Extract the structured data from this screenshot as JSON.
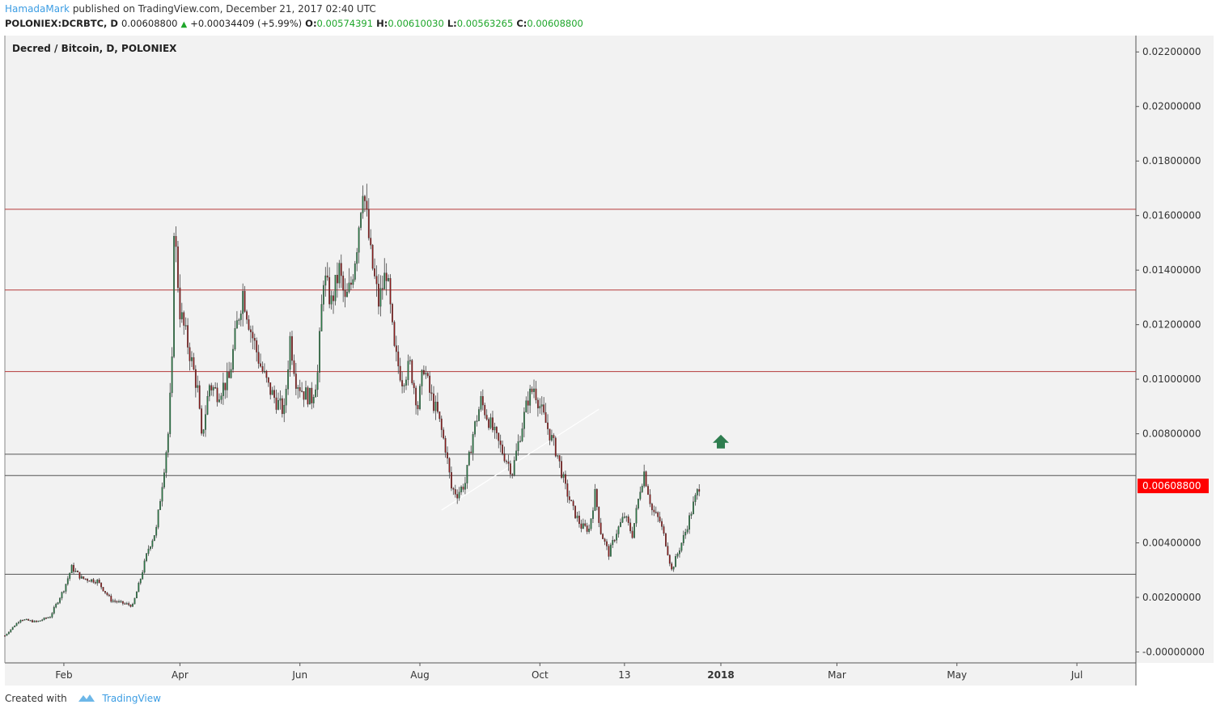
{
  "header": {
    "author": "HamadaMark",
    "published_text": "published on TradingView.com, December 21, 2017 02:40 UTC",
    "symbol": "POLONIEX:DCRBTC, D",
    "last": "0.00608800",
    "change": "+0.00034409 (+5.99%)",
    "o_label": "O:",
    "o_value": "0.00574391",
    "h_label": "H:",
    "h_value": "0.00610030",
    "l_label": "L:",
    "l_value": "0.00563265",
    "c_label": "C:",
    "c_value": "0.00608800"
  },
  "footer": {
    "created_with": "Created with",
    "brand": "TradingView"
  },
  "colors": {
    "pane_bg": "#f2f2f2",
    "up_candle": "#2a7a46",
    "down_candle": "#8c1b1b",
    "resistance": "#b53a3a",
    "support": "#555555",
    "last_price_bg": "#ff0000",
    "arrow": "#2e7d4f"
  },
  "chart_data": {
    "type": "candlestick",
    "title": "Decred / Bitcoin, D, POLONIEX",
    "last_price_label": "0.00608800",
    "ylim": [
      -0.0004,
      0.0226
    ],
    "y_ticks": [
      "0.02200000",
      "0.02000000",
      "0.01800000",
      "0.01600000",
      "0.01400000",
      "0.01200000",
      "0.01000000",
      "0.00800000",
      "0.00400000",
      "0.00200000",
      "-0.00000000"
    ],
    "y_tick_values": [
      0.022,
      0.02,
      0.018,
      0.016,
      0.014,
      0.012,
      0.01,
      0.008,
      0.004,
      0.002,
      0.0
    ],
    "x_ticks": [
      {
        "label": "Feb",
        "date": "2017-02-01",
        "bold": false
      },
      {
        "label": "Apr",
        "date": "2017-04-01",
        "bold": false
      },
      {
        "label": "Jun",
        "date": "2017-06-01",
        "bold": false
      },
      {
        "label": "Aug",
        "date": "2017-08-01",
        "bold": false
      },
      {
        "label": "Oct",
        "date": "2017-10-01",
        "bold": false
      },
      {
        "label": "13",
        "date": "2017-11-13",
        "bold": false
      },
      {
        "label": "2018",
        "date": "2018-01-01",
        "bold": true
      },
      {
        "label": "Mar",
        "date": "2018-03-01",
        "bold": false
      },
      {
        "label": "May",
        "date": "2018-05-01",
        "bold": false
      },
      {
        "label": "Jul",
        "date": "2018-07-01",
        "bold": false
      }
    ],
    "x_range": [
      "2017-01-02",
      "2018-07-31"
    ],
    "horizontal_lines": [
      {
        "value": 0.01623,
        "kind": "resistance"
      },
      {
        "value": 0.01327,
        "kind": "resistance"
      },
      {
        "value": 0.01028,
        "kind": "resistance"
      },
      {
        "value": 0.00725,
        "kind": "support"
      },
      {
        "value": 0.00647,
        "kind": "support"
      },
      {
        "value": 0.00285,
        "kind": "support"
      }
    ],
    "trendline": {
      "from": {
        "date": "2017-08-12",
        "value": 0.0052
      },
      "to": {
        "date": "2017-10-31",
        "value": 0.0089
      }
    },
    "arrow": {
      "date": "2018-01-01",
      "value": 0.0077,
      "direction": "up"
    },
    "price_path": [
      [
        "2017-01-02",
        0.0006
      ],
      [
        "2017-01-10",
        0.0012
      ],
      [
        "2017-01-18",
        0.0011
      ],
      [
        "2017-01-25",
        0.0013
      ],
      [
        "2017-02-01",
        0.0023
      ],
      [
        "2017-02-05",
        0.0031
      ],
      [
        "2017-02-10",
        0.0027
      ],
      [
        "2017-02-18",
        0.0026
      ],
      [
        "2017-02-25",
        0.0019
      ],
      [
        "2017-03-02",
        0.0018
      ],
      [
        "2017-03-08",
        0.0017
      ],
      [
        "2017-03-12",
        0.0027
      ],
      [
        "2017-03-16",
        0.0038
      ],
      [
        "2017-03-20",
        0.0045
      ],
      [
        "2017-03-23",
        0.0062
      ],
      [
        "2017-03-26",
        0.008
      ],
      [
        "2017-03-28",
        0.0105
      ],
      [
        "2017-03-29",
        0.0157
      ],
      [
        "2017-04-01",
        0.0125
      ],
      [
        "2017-04-05",
        0.0113
      ],
      [
        "2017-04-10",
        0.0096
      ],
      [
        "2017-04-12",
        0.0078
      ],
      [
        "2017-04-16",
        0.0098
      ],
      [
        "2017-04-20",
        0.0095
      ],
      [
        "2017-04-26",
        0.01
      ],
      [
        "2017-04-30",
        0.012
      ],
      [
        "2017-05-03",
        0.0132
      ],
      [
        "2017-05-07",
        0.0118
      ],
      [
        "2017-05-12",
        0.0105
      ],
      [
        "2017-05-16",
        0.0097
      ],
      [
        "2017-05-20",
        0.0092
      ],
      [
        "2017-05-24",
        0.0088
      ],
      [
        "2017-05-27",
        0.0115
      ],
      [
        "2017-05-30",
        0.01
      ],
      [
        "2017-06-03",
        0.0095
      ],
      [
        "2017-06-07",
        0.0093
      ],
      [
        "2017-06-10",
        0.0102
      ],
      [
        "2017-06-13",
        0.0138
      ],
      [
        "2017-06-17",
        0.0128
      ],
      [
        "2017-06-21",
        0.014
      ],
      [
        "2017-06-24",
        0.0128
      ],
      [
        "2017-06-27",
        0.0135
      ],
      [
        "2017-06-30",
        0.015
      ],
      [
        "2017-07-03",
        0.0172
      ],
      [
        "2017-07-07",
        0.0145
      ],
      [
        "2017-07-11",
        0.0128
      ],
      [
        "2017-07-15",
        0.014
      ],
      [
        "2017-07-19",
        0.011
      ],
      [
        "2017-07-23",
        0.01
      ],
      [
        "2017-07-27",
        0.0105
      ],
      [
        "2017-07-31",
        0.009
      ],
      [
        "2017-08-03",
        0.0105
      ],
      [
        "2017-08-06",
        0.0095
      ],
      [
        "2017-08-10",
        0.0087
      ],
      [
        "2017-08-14",
        0.0075
      ],
      [
        "2017-08-17",
        0.006
      ],
      [
        "2017-08-20",
        0.0058
      ],
      [
        "2017-08-24",
        0.0062
      ],
      [
        "2017-08-28",
        0.008
      ],
      [
        "2017-09-01",
        0.0092
      ],
      [
        "2017-09-05",
        0.0085
      ],
      [
        "2017-09-09",
        0.0078
      ],
      [
        "2017-09-13",
        0.0072
      ],
      [
        "2017-09-17",
        0.0066
      ],
      [
        "2017-09-21",
        0.008
      ],
      [
        "2017-09-25",
        0.0093
      ],
      [
        "2017-09-28",
        0.0097
      ],
      [
        "2017-10-02",
        0.0088
      ],
      [
        "2017-10-06",
        0.008
      ],
      [
        "2017-10-10",
        0.0072
      ],
      [
        "2017-10-14",
        0.006
      ],
      [
        "2017-10-18",
        0.0052
      ],
      [
        "2017-10-22",
        0.0046
      ],
      [
        "2017-10-26",
        0.0045
      ],
      [
        "2017-10-29",
        0.0058
      ],
      [
        "2017-11-01",
        0.0044
      ],
      [
        "2017-11-05",
        0.0036
      ],
      [
        "2017-11-09",
        0.0044
      ],
      [
        "2017-11-13",
        0.005
      ],
      [
        "2017-11-17",
        0.0043
      ],
      [
        "2017-11-21",
        0.006
      ],
      [
        "2017-11-23",
        0.0066
      ],
      [
        "2017-11-27",
        0.0052
      ],
      [
        "2017-12-01",
        0.0048
      ],
      [
        "2017-12-04",
        0.004
      ],
      [
        "2017-12-07",
        0.003
      ],
      [
        "2017-12-10",
        0.0036
      ],
      [
        "2017-12-14",
        0.0044
      ],
      [
        "2017-12-18",
        0.0054
      ],
      [
        "2017-12-21",
        0.00609
      ]
    ]
  }
}
